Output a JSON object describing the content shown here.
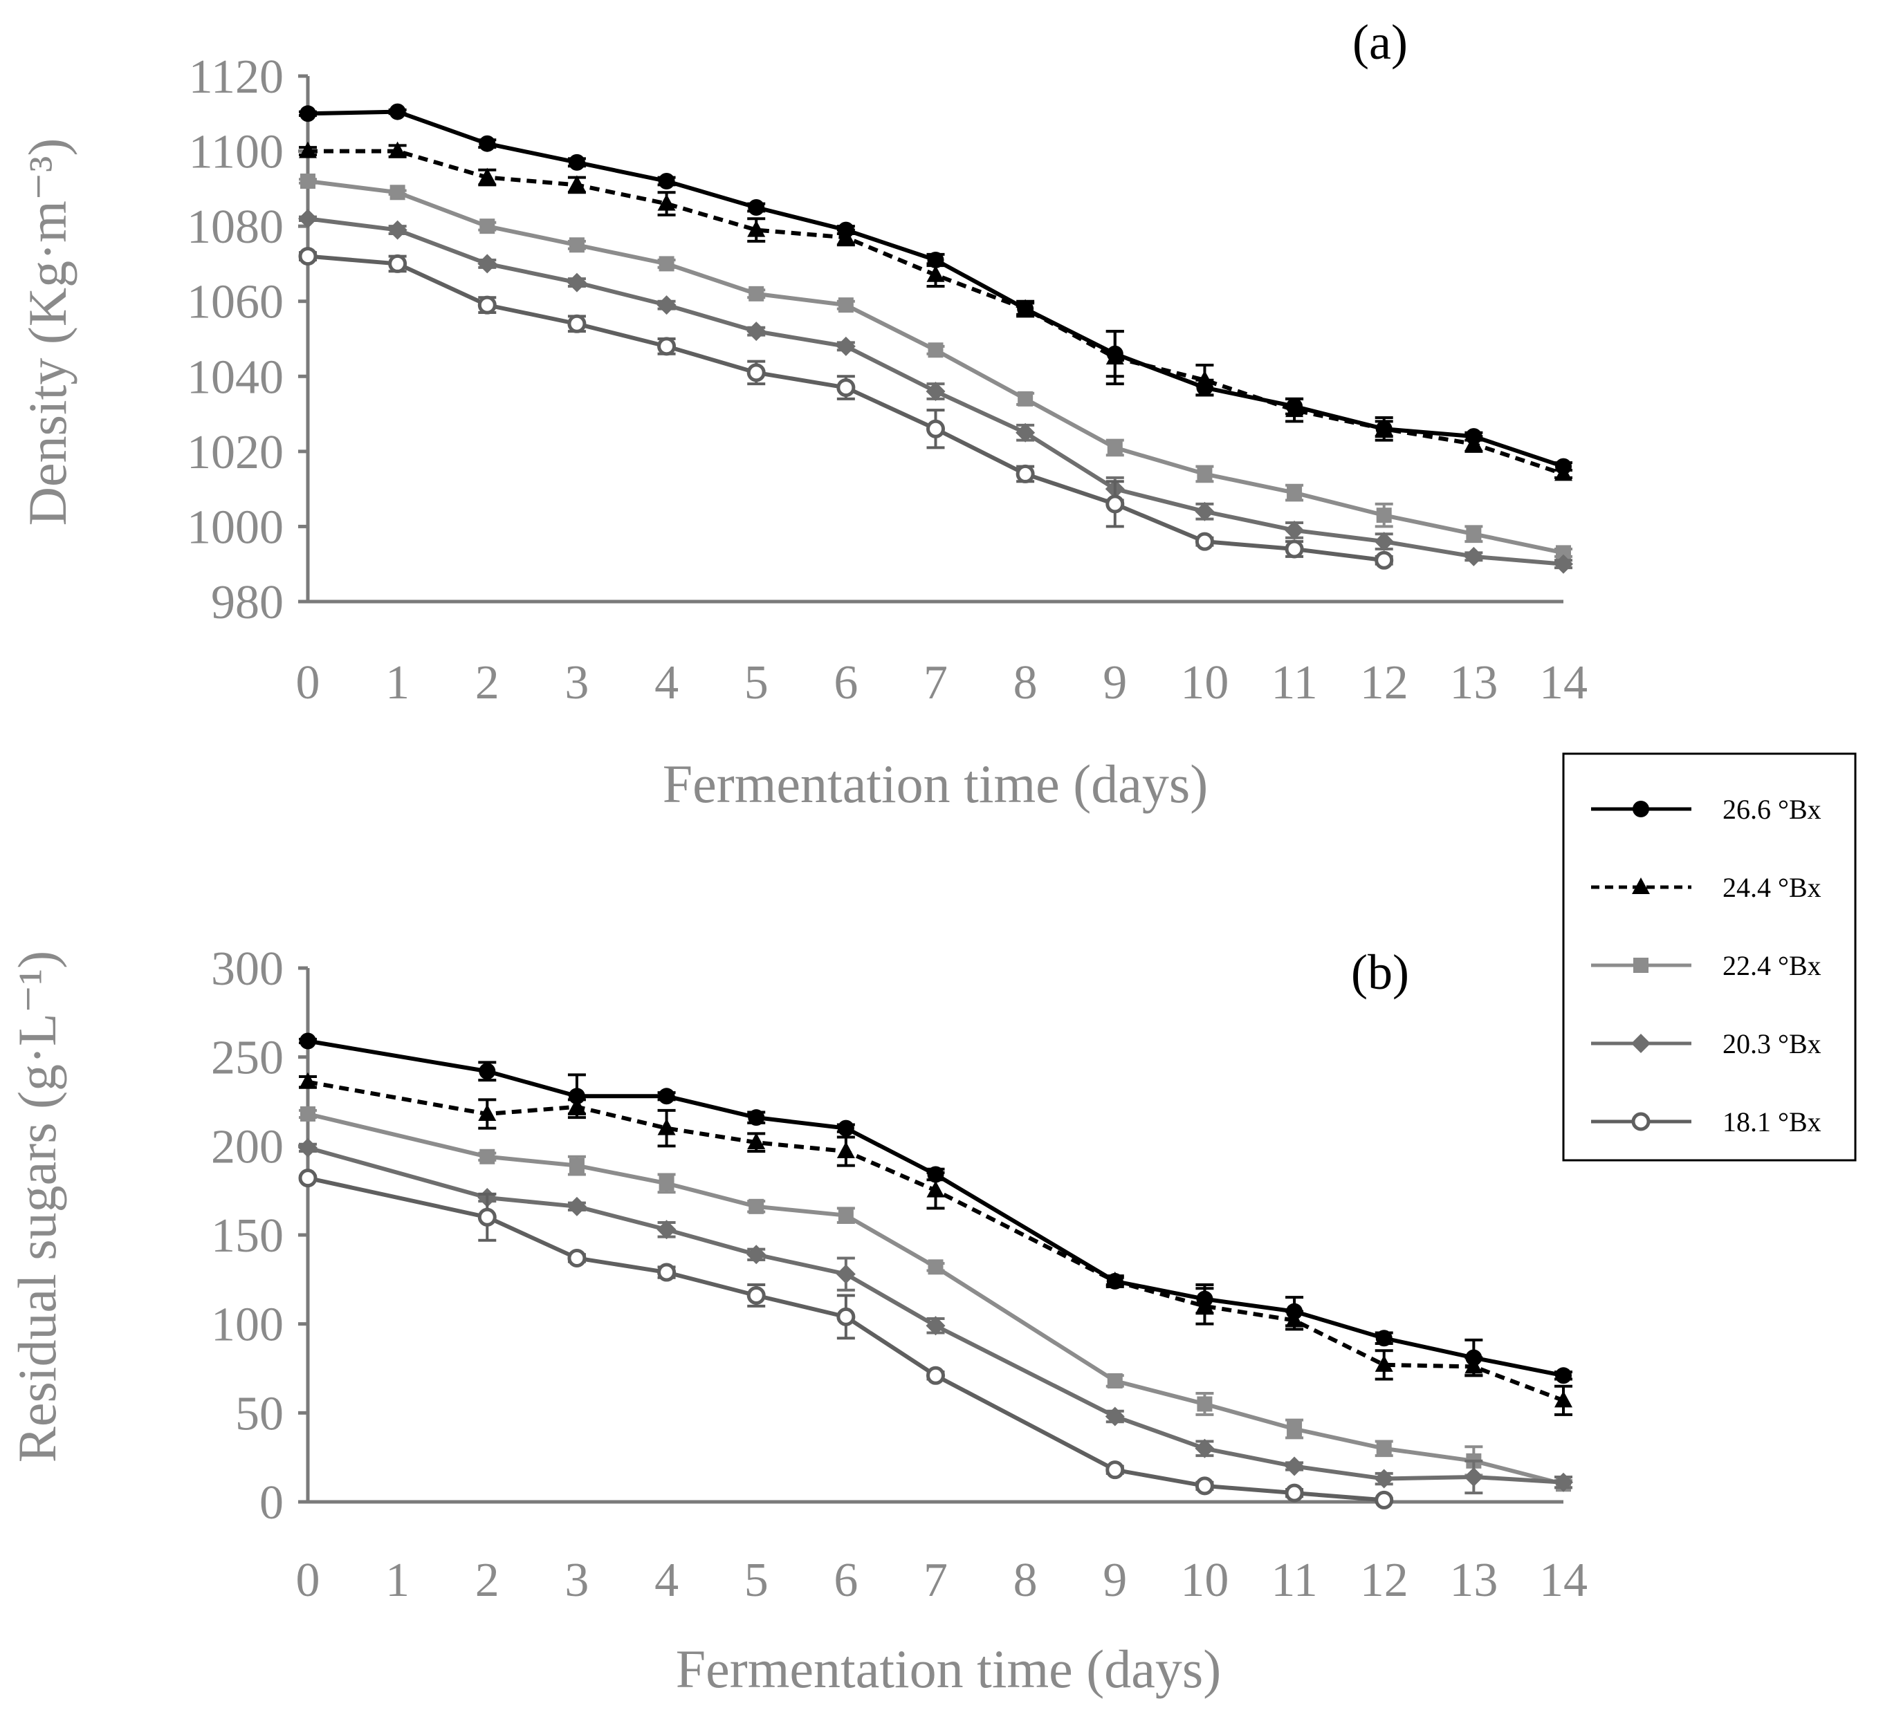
{
  "chart_data": [
    {
      "id": "a",
      "type": "line",
      "panel_label": "(a)",
      "ylabel": "Density (Kg·m⁻³)",
      "xlabel": "Fermentation time (days)",
      "ylim": [
        980,
        1120
      ],
      "yticks": [
        980,
        1000,
        1020,
        1040,
        1060,
        1080,
        1100,
        1120
      ],
      "xticks": [
        0,
        1,
        2,
        3,
        4,
        5,
        6,
        7,
        8,
        9,
        10,
        11,
        12,
        13,
        14
      ],
      "series": [
        {
          "key": "s266",
          "name": "26.6 °Bx",
          "x": [
            0,
            1,
            2,
            3,
            4,
            5,
            6,
            7,
            8,
            9,
            10,
            11,
            12,
            13,
            14
          ],
          "values": [
            1110,
            1110.5,
            1102,
            1097,
            1092,
            1085,
            1079,
            1071,
            1058,
            1046,
            1037,
            1032,
            1026,
            1024,
            1016
          ],
          "err": [
            0.5,
            0.5,
            1,
            1,
            1,
            1,
            1,
            1.5,
            1.5,
            6,
            2,
            2,
            2,
            1,
            1
          ]
        },
        {
          "key": "s244",
          "name": "24.4 °Bx",
          "x": [
            0,
            1,
            2,
            3,
            4,
            5,
            6,
            7,
            8,
            9,
            10,
            11,
            12,
            13,
            14
          ],
          "values": [
            1100,
            1100,
            1093,
            1091,
            1086,
            1079,
            1077,
            1067,
            1058,
            1045,
            1039,
            1031,
            1026,
            1022,
            1014
          ],
          "err": [
            1,
            1.5,
            2,
            2,
            3,
            3,
            2,
            3,
            2,
            7,
            4,
            3,
            3,
            2,
            1
          ]
        },
        {
          "key": "s224",
          "name": "22.4 °Bx",
          "x": [
            0,
            1,
            2,
            3,
            4,
            5,
            6,
            7,
            8,
            9,
            10,
            11,
            12,
            13,
            14
          ],
          "values": [
            1092,
            1089,
            1080,
            1075,
            1070,
            1062,
            1059,
            1047,
            1034,
            1021,
            1014,
            1009,
            1003,
            998,
            993
          ],
          "err": [
            0.5,
            0.5,
            1,
            1,
            1,
            1,
            1,
            1,
            1.5,
            2,
            2,
            2,
            3,
            2,
            1
          ]
        },
        {
          "key": "s203",
          "name": "20.3 °Bx",
          "x": [
            0,
            1,
            2,
            3,
            4,
            5,
            6,
            7,
            8,
            9,
            10,
            11,
            12,
            13,
            14
          ],
          "values": [
            1082,
            1079,
            1070,
            1065,
            1059,
            1052,
            1048,
            1036,
            1025,
            1010,
            1004,
            999,
            996,
            992,
            990
          ],
          "err": [
            0.5,
            1,
            1,
            1,
            1,
            1,
            1,
            2,
            2,
            3,
            2,
            2,
            2,
            1,
            1
          ]
        },
        {
          "key": "s181",
          "name": "18.1 °Bx",
          "x": [
            0,
            1,
            2,
            3,
            4,
            5,
            6,
            7,
            8,
            9,
            10,
            11,
            12
          ],
          "values": [
            1072,
            1070,
            1059,
            1054,
            1048,
            1041,
            1037,
            1026,
            1014,
            1006,
            996,
            994,
            991
          ],
          "err": [
            1,
            2,
            2,
            2,
            2,
            3,
            3,
            5,
            2,
            6,
            1,
            2,
            1
          ]
        }
      ]
    },
    {
      "id": "b",
      "type": "line",
      "panel_label": "(b)",
      "ylabel": "Residual sugars (g·L⁻¹)",
      "xlabel": "Fermentation time (days)",
      "ylim": [
        0,
        300
      ],
      "yticks": [
        0,
        50,
        100,
        150,
        200,
        250,
        300
      ],
      "xticks": [
        0,
        1,
        2,
        3,
        4,
        5,
        6,
        7,
        8,
        9,
        10,
        11,
        12,
        13,
        14
      ],
      "series": [
        {
          "key": "s266",
          "name": "26.6 °Bx",
          "x": [
            0,
            2,
            3,
            4,
            5,
            6,
            7,
            9,
            10,
            11,
            12,
            13,
            14
          ],
          "values": [
            259,
            242,
            228,
            228,
            216,
            210,
            184,
            124,
            114,
            107,
            92,
            81,
            71
          ],
          "err": [
            1,
            5,
            12,
            2,
            3,
            2,
            3,
            2,
            8,
            8,
            3,
            10,
            2
          ]
        },
        {
          "key": "s244",
          "name": "24.4 °Bx",
          "x": [
            0,
            2,
            3,
            4,
            5,
            6,
            7,
            9,
            10,
            11,
            12,
            13,
            14
          ],
          "values": [
            236,
            218,
            222,
            210,
            202,
            197,
            175,
            124,
            110,
            102,
            77,
            76,
            57
          ],
          "err": [
            3,
            8,
            4,
            10,
            5,
            8,
            10,
            3,
            10,
            5,
            8,
            5,
            8
          ]
        },
        {
          "key": "s224",
          "name": "22.4 °Bx",
          "x": [
            0,
            2,
            3,
            4,
            5,
            6,
            7,
            9,
            10,
            11,
            12,
            13,
            14
          ],
          "values": [
            218,
            194,
            189,
            179,
            166,
            161,
            132,
            68,
            55,
            41,
            30,
            23,
            10
          ],
          "err": [
            2,
            2,
            5,
            5,
            3,
            4,
            2,
            3,
            6,
            5,
            4,
            8,
            2
          ]
        },
        {
          "key": "s203",
          "name": "20.3 °Bx",
          "x": [
            0,
            2,
            3,
            4,
            5,
            6,
            7,
            9,
            10,
            11,
            12,
            13,
            14
          ],
          "values": [
            199,
            171,
            166,
            153,
            139,
            128,
            99,
            48,
            30,
            20,
            13,
            14,
            11
          ],
          "err": [
            2,
            2,
            2,
            4,
            3,
            9,
            4,
            3,
            4,
            2,
            3,
            9,
            3
          ]
        },
        {
          "key": "s181",
          "name": "18.1 °Bx",
          "x": [
            0,
            2,
            3,
            4,
            5,
            6,
            7,
            9,
            10,
            11,
            12
          ],
          "values": [
            182,
            160,
            137,
            129,
            116,
            104,
            71,
            18,
            9,
            5,
            1
          ],
          "err": [
            1,
            13,
            2,
            3,
            6,
            12,
            2,
            2,
            2,
            2,
            1
          ]
        }
      ]
    }
  ],
  "legend": [
    {
      "key": "s266",
      "label": "26.6 °Bx"
    },
    {
      "key": "s244",
      "label": "24.4 °Bx"
    },
    {
      "key": "s224",
      "label": "22.4 °Bx"
    },
    {
      "key": "s203",
      "label": "20.3 °Bx"
    },
    {
      "key": "s181",
      "label": "18.1 °Bx"
    }
  ],
  "styles": {
    "s266": {
      "color": "#000000",
      "marker": "circle",
      "dash": false
    },
    "s244": {
      "color": "#000000",
      "marker": "triangle",
      "dash": true
    },
    "s224": {
      "color": "#8c8c8c",
      "marker": "square",
      "dash": false
    },
    "s203": {
      "color": "#6e6e6e",
      "marker": "diamond",
      "dash": false
    },
    "s181": {
      "color": "#5f5f5f",
      "marker": "open-circle",
      "dash": false
    }
  }
}
